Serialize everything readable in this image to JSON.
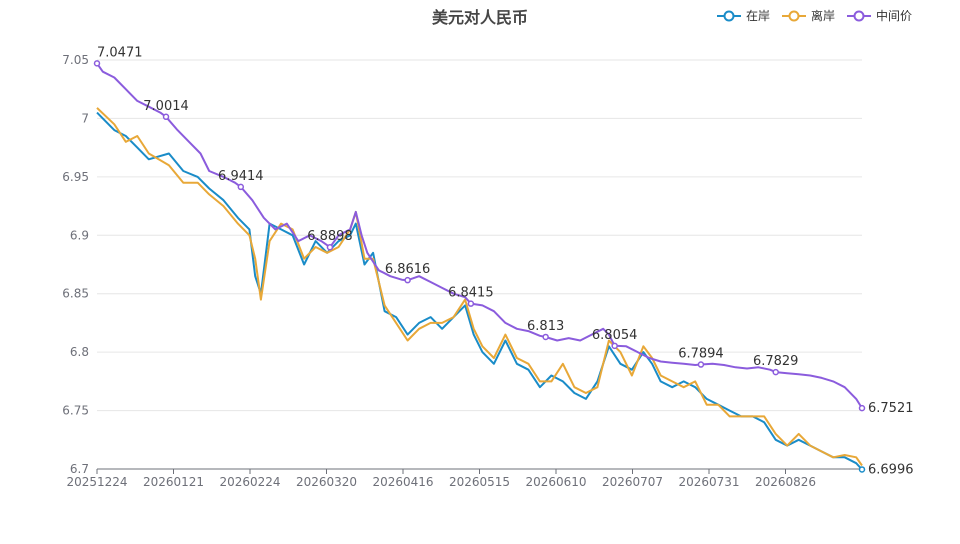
{
  "chart_data": {
    "type": "line",
    "title": "美元对人民币",
    "ylim": [
      6.7,
      7.05
    ],
    "yticks": [
      "6.7",
      "6.75",
      "6.8",
      "6.85",
      "6.9",
      "6.95",
      "7",
      "7.05"
    ],
    "xticks": [
      "20251224",
      "20260121",
      "20260224",
      "20260320",
      "20260416",
      "20260515",
      "20260610",
      "20260707",
      "20260731",
      "20260826"
    ],
    "legend_position": "top-right",
    "grid": true,
    "series": [
      {
        "name": "在岸",
        "color": "#1a8cc8",
        "points": [
          [
            0,
            7.005
          ],
          [
            6,
            6.99
          ],
          [
            10,
            6.985
          ],
          [
            14,
            6.975
          ],
          [
            18,
            6.965
          ],
          [
            25,
            6.97
          ],
          [
            30,
            6.955
          ],
          [
            35,
            6.95
          ],
          [
            39,
            6.94
          ],
          [
            44,
            6.93
          ],
          [
            49,
            6.915
          ],
          [
            53,
            6.905
          ],
          [
            55,
            6.865
          ],
          [
            57,
            6.85
          ],
          [
            60,
            6.91
          ],
          [
            64,
            6.905
          ],
          [
            68,
            6.9
          ],
          [
            72,
            6.875
          ],
          [
            76,
            6.895
          ],
          [
            80,
            6.885
          ],
          [
            84,
            6.895
          ],
          [
            88,
            6.9
          ],
          [
            90,
            6.91
          ],
          [
            93,
            6.875
          ],
          [
            96,
            6.885
          ],
          [
            100,
            6.835
          ],
          [
            104,
            6.83
          ],
          [
            108,
            6.815
          ],
          [
            112,
            6.825
          ],
          [
            116,
            6.83
          ],
          [
            120,
            6.82
          ],
          [
            124,
            6.83
          ],
          [
            128,
            6.84
          ],
          [
            131,
            6.815
          ],
          [
            134,
            6.8
          ],
          [
            138,
            6.79
          ],
          [
            142,
            6.81
          ],
          [
            146,
            6.79
          ],
          [
            150,
            6.785
          ],
          [
            154,
            6.77
          ],
          [
            158,
            6.78
          ],
          [
            162,
            6.775
          ],
          [
            166,
            6.765
          ],
          [
            170,
            6.76
          ],
          [
            174,
            6.775
          ],
          [
            178,
            6.805
          ],
          [
            182,
            6.79
          ],
          [
            186,
            6.785
          ],
          [
            190,
            6.8
          ],
          [
            193,
            6.79
          ],
          [
            196,
            6.775
          ],
          [
            200,
            6.77
          ],
          [
            204,
            6.775
          ],
          [
            208,
            6.77
          ],
          [
            212,
            6.76
          ],
          [
            216,
            6.755
          ],
          [
            220,
            6.75
          ],
          [
            224,
            6.745
          ],
          [
            228,
            6.745
          ],
          [
            232,
            6.74
          ],
          [
            236,
            6.725
          ],
          [
            240,
            6.72
          ],
          [
            244,
            6.725
          ],
          [
            248,
            6.72
          ],
          [
            252,
            6.715
          ],
          [
            256,
            6.71
          ],
          [
            260,
            6.71
          ],
          [
            264,
            6.705
          ],
          [
            266,
            6.6996
          ]
        ]
      },
      {
        "name": "离岸",
        "color": "#e8a838",
        "points": [
          [
            0,
            7.009
          ],
          [
            6,
            6.995
          ],
          [
            10,
            6.98
          ],
          [
            14,
            6.985
          ],
          [
            18,
            6.97
          ],
          [
            25,
            6.96
          ],
          [
            30,
            6.945
          ],
          [
            35,
            6.945
          ],
          [
            39,
            6.935
          ],
          [
            44,
            6.925
          ],
          [
            49,
            6.91
          ],
          [
            53,
            6.9
          ],
          [
            55,
            6.88
          ],
          [
            57,
            6.845
          ],
          [
            60,
            6.895
          ],
          [
            64,
            6.91
          ],
          [
            68,
            6.905
          ],
          [
            72,
            6.88
          ],
          [
            76,
            6.89
          ],
          [
            80,
            6.885
          ],
          [
            84,
            6.89
          ],
          [
            88,
            6.905
          ],
          [
            90,
            6.92
          ],
          [
            93,
            6.88
          ],
          [
            96,
            6.88
          ],
          [
            100,
            6.84
          ],
          [
            104,
            6.825
          ],
          [
            108,
            6.81
          ],
          [
            112,
            6.82
          ],
          [
            116,
            6.825
          ],
          [
            120,
            6.825
          ],
          [
            124,
            6.83
          ],
          [
            128,
            6.845
          ],
          [
            131,
            6.82
          ],
          [
            134,
            6.805
          ],
          [
            138,
            6.795
          ],
          [
            142,
            6.815
          ],
          [
            146,
            6.795
          ],
          [
            150,
            6.79
          ],
          [
            154,
            6.775
          ],
          [
            158,
            6.775
          ],
          [
            162,
            6.79
          ],
          [
            166,
            6.77
          ],
          [
            170,
            6.765
          ],
          [
            174,
            6.77
          ],
          [
            178,
            6.81
          ],
          [
            182,
            6.8
          ],
          [
            186,
            6.78
          ],
          [
            190,
            6.805
          ],
          [
            193,
            6.795
          ],
          [
            196,
            6.78
          ],
          [
            200,
            6.775
          ],
          [
            204,
            6.77
          ],
          [
            208,
            6.775
          ],
          [
            212,
            6.755
          ],
          [
            216,
            6.755
          ],
          [
            220,
            6.745
          ],
          [
            224,
            6.745
          ],
          [
            228,
            6.745
          ],
          [
            232,
            6.745
          ],
          [
            236,
            6.73
          ],
          [
            240,
            6.72
          ],
          [
            244,
            6.73
          ],
          [
            248,
            6.72
          ],
          [
            252,
            6.715
          ],
          [
            256,
            6.71
          ],
          [
            260,
            6.712
          ],
          [
            264,
            6.71
          ],
          [
            266,
            6.703
          ]
        ]
      },
      {
        "name": "中间价",
        "color": "#8b5cdd",
        "points": [
          [
            0,
            7.0471
          ],
          [
            2,
            7.04
          ],
          [
            6,
            7.035
          ],
          [
            10,
            7.025
          ],
          [
            14,
            7.015
          ],
          [
            18,
            7.01
          ],
          [
            22,
            7.005
          ],
          [
            24,
            7.0014
          ],
          [
            28,
            6.99
          ],
          [
            32,
            6.98
          ],
          [
            36,
            6.97
          ],
          [
            39,
            6.955
          ],
          [
            44,
            6.95
          ],
          [
            48,
            6.945
          ],
          [
            50,
            6.9414
          ],
          [
            54,
            6.93
          ],
          [
            58,
            6.915
          ],
          [
            62,
            6.905
          ],
          [
            66,
            6.91
          ],
          [
            70,
            6.895
          ],
          [
            74,
            6.9
          ],
          [
            78,
            6.895
          ],
          [
            81,
            6.8898
          ],
          [
            84,
            6.9
          ],
          [
            88,
            6.905
          ],
          [
            90,
            6.92
          ],
          [
            92,
            6.9
          ],
          [
            94,
            6.885
          ],
          [
            98,
            6.87
          ],
          [
            102,
            6.865
          ],
          [
            106,
            6.862
          ],
          [
            108,
            6.8616
          ],
          [
            112,
            6.865
          ],
          [
            116,
            6.86
          ],
          [
            120,
            6.855
          ],
          [
            124,
            6.85
          ],
          [
            128,
            6.847
          ],
          [
            130,
            6.8415
          ],
          [
            134,
            6.84
          ],
          [
            138,
            6.835
          ],
          [
            142,
            6.825
          ],
          [
            146,
            6.82
          ],
          [
            150,
            6.818
          ],
          [
            154,
            6.814
          ],
          [
            156,
            6.813
          ],
          [
            160,
            6.81
          ],
          [
            164,
            6.812
          ],
          [
            168,
            6.81
          ],
          [
            172,
            6.815
          ],
          [
            176,
            6.82
          ],
          [
            178,
            6.815
          ],
          [
            180,
            6.8054
          ],
          [
            184,
            6.805
          ],
          [
            188,
            6.8
          ],
          [
            192,
            6.795
          ],
          [
            196,
            6.792
          ],
          [
            200,
            6.791
          ],
          [
            204,
            6.79
          ],
          [
            208,
            6.789
          ],
          [
            210,
            6.7894
          ],
          [
            214,
            6.79
          ],
          [
            218,
            6.789
          ],
          [
            222,
            6.787
          ],
          [
            226,
            6.786
          ],
          [
            230,
            6.787
          ],
          [
            234,
            6.785
          ],
          [
            236,
            6.7829
          ],
          [
            240,
            6.782
          ],
          [
            244,
            6.781
          ],
          [
            248,
            6.78
          ],
          [
            252,
            6.778
          ],
          [
            256,
            6.775
          ],
          [
            260,
            6.77
          ],
          [
            264,
            6.76
          ],
          [
            266,
            6.7521
          ]
        ]
      }
    ],
    "annotations": [
      {
        "series": 2,
        "x": 0,
        "y": 7.0471,
        "text": "7.0471"
      },
      {
        "series": 2,
        "x": 24,
        "y": 7.0014,
        "text": "7.0014"
      },
      {
        "series": 2,
        "x": 50,
        "y": 6.9414,
        "text": "6.9414"
      },
      {
        "series": 2,
        "x": 81,
        "y": 6.8898,
        "text": "6.8898"
      },
      {
        "series": 2,
        "x": 108,
        "y": 6.8616,
        "text": "6.8616"
      },
      {
        "series": 2,
        "x": 130,
        "y": 6.8415,
        "text": "6.8415"
      },
      {
        "series": 2,
        "x": 156,
        "y": 6.813,
        "text": "6.813"
      },
      {
        "series": 2,
        "x": 180,
        "y": 6.8054,
        "text": "6.8054"
      },
      {
        "series": 2,
        "x": 210,
        "y": 6.7894,
        "text": "6.7894"
      },
      {
        "series": 2,
        "x": 236,
        "y": 6.7829,
        "text": "6.7829"
      },
      {
        "series": 2,
        "x": 266,
        "y": 6.7521,
        "text": "6.7521"
      },
      {
        "series": 0,
        "x": 266,
        "y": 6.6996,
        "text": "6.6996"
      }
    ]
  }
}
